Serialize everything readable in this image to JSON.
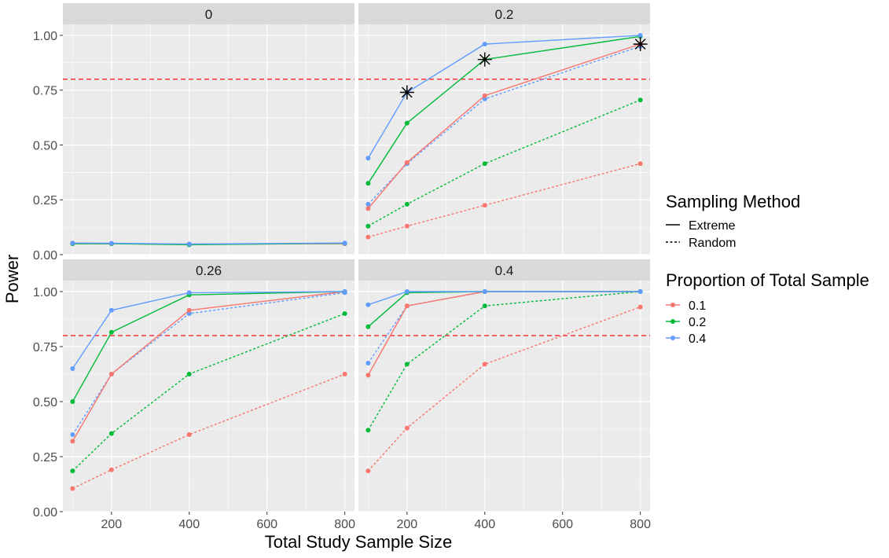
{
  "chart_data": {
    "type": "line",
    "xlabel": "Total Study Sample Size",
    "ylabel": "Power",
    "x": [
      100,
      200,
      400,
      800
    ],
    "xlim": [
      75,
      825
    ],
    "ylim": [
      0,
      1.05
    ],
    "x_ticks": [
      200,
      400,
      600,
      800
    ],
    "x_tick_labels": [
      "200",
      "400",
      "600",
      "800"
    ],
    "y_ticks": [
      0,
      0.25,
      0.5,
      0.75,
      1.0
    ],
    "y_tick_labels": [
      "0.00",
      "0.25",
      "0.50",
      "0.75",
      "1.00"
    ],
    "threshold": 0.8,
    "threshold_color": "#F8333C",
    "grid": true,
    "legend_position": "right",
    "legends": {
      "linetype": {
        "title": "Sampling Method",
        "items": [
          {
            "label": "Extreme",
            "dash": "solid"
          },
          {
            "label": "Random",
            "dash": "dotted"
          }
        ]
      },
      "color": {
        "title": "Proportion of Total Sample",
        "items": [
          {
            "label": "0.1",
            "color": "#F8766D"
          },
          {
            "label": "0.2",
            "color": "#00BA38"
          },
          {
            "label": "0.4",
            "color": "#619CFF"
          }
        ]
      }
    },
    "panels": [
      {
        "label": "0",
        "series": [
          {
            "method": "Random",
            "proportion": "0.1",
            "color": "#F8766D",
            "values": [
              0.05,
              0.05,
              0.048,
              0.05
            ]
          },
          {
            "method": "Random",
            "proportion": "0.2",
            "color": "#00BA38",
            "values": [
              0.05,
              0.05,
              0.048,
              0.05
            ]
          },
          {
            "method": "Random",
            "proportion": "0.4",
            "color": "#619CFF",
            "values": [
              0.05,
              0.05,
              0.048,
              0.05
            ]
          },
          {
            "method": "Extreme",
            "proportion": "0.1",
            "color": "#F8766D",
            "values": [
              0.05,
              0.05,
              0.047,
              0.05
            ]
          },
          {
            "method": "Extreme",
            "proportion": "0.2",
            "color": "#00BA38",
            "values": [
              0.05,
              0.05,
              0.045,
              0.052
            ]
          },
          {
            "method": "Extreme",
            "proportion": "0.4",
            "color": "#619CFF",
            "values": [
              0.053,
              0.052,
              0.048,
              0.053
            ]
          }
        ],
        "stars": []
      },
      {
        "label": "0.2",
        "series": [
          {
            "method": "Random",
            "proportion": "0.1",
            "color": "#F8766D",
            "values": [
              0.08,
              0.13,
              0.225,
              0.415
            ]
          },
          {
            "method": "Random",
            "proportion": "0.2",
            "color": "#00BA38",
            "values": [
              0.13,
              0.23,
              0.415,
              0.705
            ]
          },
          {
            "method": "Random",
            "proportion": "0.4",
            "color": "#619CFF",
            "values": [
              0.23,
              0.415,
              0.71,
              0.95
            ]
          },
          {
            "method": "Extreme",
            "proportion": "0.1",
            "color": "#F8766D",
            "values": [
              0.21,
              0.42,
              0.725,
              0.96
            ]
          },
          {
            "method": "Extreme",
            "proportion": "0.2",
            "color": "#00BA38",
            "values": [
              0.325,
              0.6,
              0.89,
              0.995
            ]
          },
          {
            "method": "Extreme",
            "proportion": "0.4",
            "color": "#619CFF",
            "values": [
              0.44,
              0.74,
              0.96,
              1.0
            ]
          }
        ],
        "stars": [
          {
            "x": 200,
            "y": 0.74
          },
          {
            "x": 400,
            "y": 0.89
          },
          {
            "x": 800,
            "y": 0.96
          }
        ]
      },
      {
        "label": "0.26",
        "series": [
          {
            "method": "Random",
            "proportion": "0.1",
            "color": "#F8766D",
            "values": [
              0.105,
              0.19,
              0.35,
              0.625
            ]
          },
          {
            "method": "Random",
            "proportion": "0.2",
            "color": "#00BA38",
            "values": [
              0.185,
              0.355,
              0.625,
              0.9
            ]
          },
          {
            "method": "Random",
            "proportion": "0.4",
            "color": "#619CFF",
            "values": [
              0.35,
              0.625,
              0.9,
              0.995
            ]
          },
          {
            "method": "Extreme",
            "proportion": "0.1",
            "color": "#F8766D",
            "values": [
              0.32,
              0.625,
              0.915,
              1.0
            ]
          },
          {
            "method": "Extreme",
            "proportion": "0.2",
            "color": "#00BA38",
            "values": [
              0.5,
              0.815,
              0.985,
              1.0
            ]
          },
          {
            "method": "Extreme",
            "proportion": "0.4",
            "color": "#619CFF",
            "values": [
              0.65,
              0.915,
              0.995,
              1.0
            ]
          }
        ],
        "stars": []
      },
      {
        "label": "0.4",
        "series": [
          {
            "method": "Random",
            "proportion": "0.1",
            "color": "#F8766D",
            "values": [
              0.185,
              0.38,
              0.67,
              0.93
            ]
          },
          {
            "method": "Random",
            "proportion": "0.2",
            "color": "#00BA38",
            "values": [
              0.37,
              0.67,
              0.935,
              1.0
            ]
          },
          {
            "method": "Random",
            "proportion": "0.4",
            "color": "#619CFF",
            "values": [
              0.675,
              0.935,
              1.0,
              1.0
            ]
          },
          {
            "method": "Extreme",
            "proportion": "0.1",
            "color": "#F8766D",
            "values": [
              0.62,
              0.935,
              1.0,
              1.0
            ]
          },
          {
            "method": "Extreme",
            "proportion": "0.2",
            "color": "#00BA38",
            "values": [
              0.84,
              0.995,
              1.0,
              1.0
            ]
          },
          {
            "method": "Extreme",
            "proportion": "0.4",
            "color": "#619CFF",
            "values": [
              0.94,
              1.0,
              1.0,
              1.0
            ]
          }
        ],
        "stars": []
      }
    ]
  }
}
